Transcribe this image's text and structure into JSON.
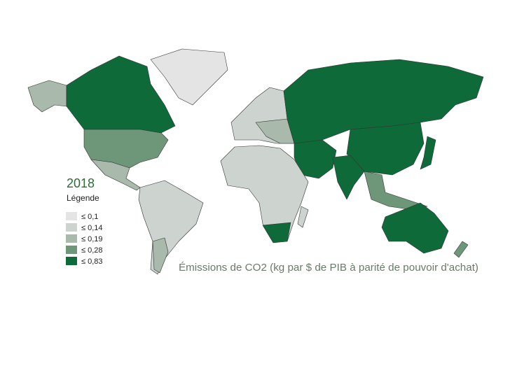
{
  "map": {
    "year": "2018",
    "legend": {
      "title": "Légende",
      "items": [
        {
          "label": "≤ 0,1",
          "color": "#e3e4e3"
        },
        {
          "label": "≤ 0,14",
          "color": "#cdd3ce"
        },
        {
          "label": "≤ 0,19",
          "color": "#a9b9ac"
        },
        {
          "label": "≤ 0,28",
          "color": "#6e977a"
        },
        {
          "label": "≤ 0,83",
          "color": "#0f6a3a"
        }
      ]
    },
    "caption": "Émissions de CO2 (kg par $ de PIB à parité de pouvoir d'achat)"
  }
}
